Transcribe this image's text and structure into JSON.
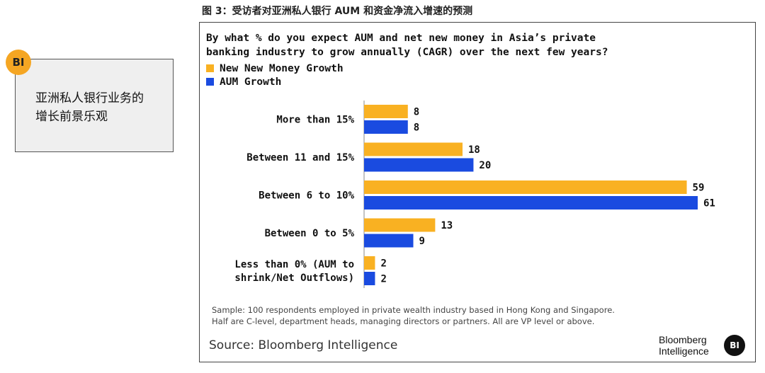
{
  "badge": {
    "text": "BI"
  },
  "callout": {
    "line1": "亚洲私人银行业务的",
    "line2": "增长前景乐观"
  },
  "figure_caption": "图 3：受访者对亚洲私人银行 AUM 和资金净流入增速的预测",
  "chart_data": {
    "type": "bar",
    "orientation": "horizontal",
    "title": "By what % do you expect AUM and net new money in Asia’s private banking industry to grow annually (CAGR) over the next few years?",
    "title_lines": [
      "By what % do you expect AUM and net new money in Asia’s private",
      "banking industry to grow annually (CAGR) over the next few years?"
    ],
    "categories": [
      [
        "More than 15%"
      ],
      [
        "Between 11 and 15%"
      ],
      [
        "Between 6 to 10%"
      ],
      [
        "Between 0 to 5%"
      ],
      [
        "Less than 0% (AUM to",
        "shrink/Net Outflows)"
      ]
    ],
    "series": [
      {
        "name": "New New Money Growth",
        "color": "#f9b122",
        "values": [
          8,
          18,
          59,
          13,
          2
        ]
      },
      {
        "name": "AUM Growth",
        "color": "#1a4be0",
        "values": [
          8,
          20,
          61,
          9,
          2
        ]
      }
    ],
    "xlim": [
      0,
      61
    ],
    "grid": false,
    "legend": "top-left"
  },
  "notes": {
    "line1": "Sample: 100 respondents employed in private wealth industry based in Hong Kong and Singapore.",
    "line2": "Half are C-level, department heads, managing directors or partners. All are VP level or above."
  },
  "source": "Source: Bloomberg Intelligence",
  "logo": {
    "line1": "Bloomberg",
    "line2": "Intelligence",
    "mark": "BI"
  }
}
